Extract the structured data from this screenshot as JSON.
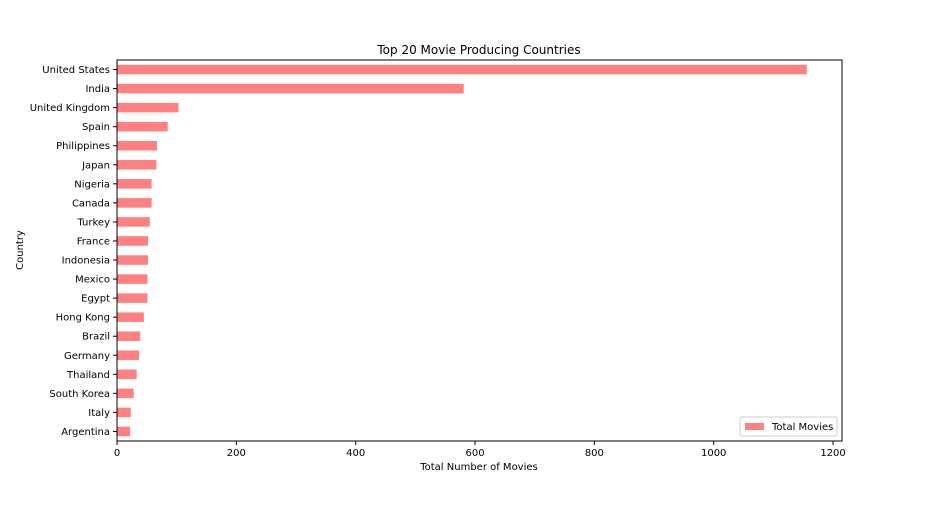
{
  "chart_data": {
    "type": "bar",
    "orientation": "horizontal",
    "title": "Top 20 Movie Producing Countries",
    "xlabel": "Total Number of Movies",
    "ylabel": "Country",
    "xlim": [
      0,
      1215
    ],
    "xticks": [
      0,
      200,
      400,
      600,
      800,
      1000,
      1200
    ],
    "categories": [
      "United States",
      "India",
      "United Kingdom",
      "Spain",
      "Philippines",
      "Japan",
      "Nigeria",
      "Canada",
      "Turkey",
      "France",
      "Indonesia",
      "Mexico",
      "Egypt",
      "Hong Kong",
      "Brazil",
      "Germany",
      "Thailand",
      "South Korea",
      "Italy",
      "Argentina"
    ],
    "series": [
      {
        "name": "Total Movies",
        "color": "#ff8080",
        "values": [
          1156,
          581,
          103,
          85,
          67,
          66,
          58,
          58,
          55,
          52,
          52,
          51,
          51,
          45,
          39,
          37,
          33,
          28,
          23,
          22
        ]
      }
    ],
    "grid": false,
    "legend_position": "bottom-right"
  }
}
